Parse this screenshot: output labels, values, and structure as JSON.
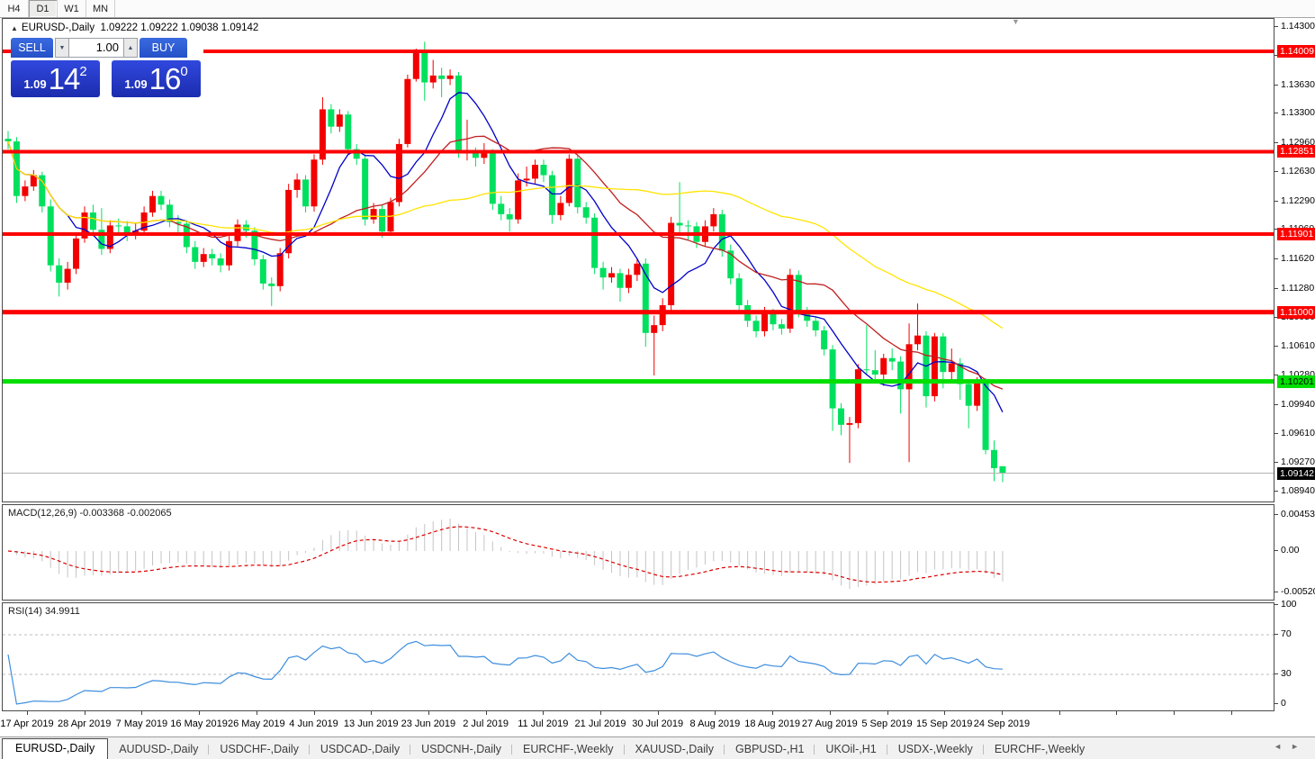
{
  "toolbar": {
    "timeframes": [
      {
        "label": "H4",
        "active": false
      },
      {
        "label": "D1",
        "active": true
      },
      {
        "label": "W1",
        "active": false
      },
      {
        "label": "MN",
        "active": false
      }
    ]
  },
  "chart_header": {
    "collapse_icon": "▲",
    "symbol": "EURUSD-,Daily",
    "ohlc": "1.09222 1.09222 1.09038 1.09142"
  },
  "trade_panel": {
    "sell_label": "SELL",
    "buy_label": "BUY",
    "volume": "1.00",
    "spin_down_icon": "▼",
    "spin_up_icon": "▲",
    "sell_price_small": "1.09",
    "sell_price_big": "14",
    "sell_price_sup": "2",
    "buy_price_small": "1.09",
    "buy_price_big": "16",
    "buy_price_sup": "0"
  },
  "price_axis": {
    "ticks": [
      "1.14300",
      "1.13970",
      "1.13630",
      "1.13300",
      "1.12960",
      "1.12630",
      "1.12290",
      "1.11960",
      "1.11620",
      "1.11280",
      "1.10950",
      "1.10610",
      "1.10280",
      "1.09940",
      "1.09610",
      "1.09270",
      "1.08940"
    ]
  },
  "hlines": [
    {
      "price": 1.14009,
      "label": "1.14009",
      "color": "#fe0000",
      "badge_bg": "#fe0000",
      "badge_fg": "#ffffff",
      "width": 4
    },
    {
      "price": 1.12851,
      "label": "1.12851",
      "color": "#fe0000",
      "badge_bg": "#fe0000",
      "badge_fg": "#ffffff",
      "width": 4
    },
    {
      "price": 1.11901,
      "label": "1.11901",
      "color": "#fe0000",
      "badge_bg": "#fe0000",
      "badge_fg": "#ffffff",
      "width": 4
    },
    {
      "price": 1.11,
      "label": "1.11000",
      "color": "#fe0000",
      "badge_bg": "#fe0000",
      "badge_fg": "#ffffff",
      "width": 5
    },
    {
      "price": 1.10201,
      "label": "1.10201",
      "color": "#00df00",
      "badge_bg": "#00df00",
      "badge_fg": "#000000",
      "width": 5
    }
  ],
  "current_price": {
    "value": 1.09142,
    "label": "1.09142",
    "line_color": "#b2b2b2",
    "badge_bg": "#000000",
    "badge_fg": "#ffffff"
  },
  "chart_data": {
    "type": "candlestick",
    "title": "EURUSD-,Daily",
    "visible_price_range": [
      1.088,
      1.144
    ],
    "colors": {
      "up": "#f20000",
      "down": "#00e05f"
    },
    "moving_averages": [
      {
        "period": 8,
        "color": "#0000c8"
      },
      {
        "period": 20,
        "color": "#c02020"
      },
      {
        "period": 50,
        "color": "#ffe400"
      }
    ],
    "x_labels": [
      "17 Apr 2019",
      "28 Apr 2019",
      "7 May 2019",
      "16 May 2019",
      "26 May 2019",
      "4 Jun 2019",
      "13 Jun 2019",
      "23 Jun 2019",
      "2 Jul 2019",
      "11 Jul 2019",
      "21 Jul 2019",
      "30 Jul 2019",
      "8 Aug 2019",
      "18 Aug 2019",
      "27 Aug 2019",
      "5 Sep 2019",
      "15 Sep 2019",
      "24 Sep 2019"
    ],
    "candles": [
      [
        1.13,
        1.1309,
        1.1288,
        1.1297
      ],
      [
        1.1297,
        1.1302,
        1.1226,
        1.1234
      ],
      [
        1.1234,
        1.1252,
        1.1228,
        1.1245
      ],
      [
        1.1245,
        1.1264,
        1.124,
        1.1258
      ],
      [
        1.1258,
        1.1262,
        1.1215,
        1.1222
      ],
      [
        1.1222,
        1.123,
        1.1147,
        1.1154
      ],
      [
        1.1154,
        1.1162,
        1.1118,
        1.1134
      ],
      [
        1.1134,
        1.1158,
        1.1126,
        1.115
      ],
      [
        1.115,
        1.1192,
        1.1144,
        1.1185
      ],
      [
        1.1185,
        1.1222,
        1.118,
        1.1215
      ],
      [
        1.1215,
        1.1224,
        1.1188,
        1.1195
      ],
      [
        1.1195,
        1.122,
        1.1166,
        1.1173
      ],
      [
        1.1173,
        1.1206,
        1.1168,
        1.12
      ],
      [
        1.12,
        1.1208,
        1.1188,
        1.1199
      ],
      [
        1.1199,
        1.1205,
        1.1182,
        1.1191
      ],
      [
        1.1191,
        1.1202,
        1.1184,
        1.1194
      ],
      [
        1.1194,
        1.1222,
        1.119,
        1.1215
      ],
      [
        1.1215,
        1.124,
        1.121,
        1.1234
      ],
      [
        1.1234,
        1.124,
        1.1218,
        1.1224
      ],
      [
        1.1224,
        1.123,
        1.1198,
        1.1204
      ],
      [
        1.1204,
        1.1212,
        1.1192,
        1.1202
      ],
      [
        1.1202,
        1.1206,
        1.1168,
        1.1175
      ],
      [
        1.1175,
        1.1182,
        1.115,
        1.1158
      ],
      [
        1.1158,
        1.1174,
        1.1152,
        1.1167
      ],
      [
        1.1167,
        1.1173,
        1.1154,
        1.1162
      ],
      [
        1.1162,
        1.1168,
        1.1146,
        1.1154
      ],
      [
        1.1154,
        1.1188,
        1.1148,
        1.1182
      ],
      [
        1.1182,
        1.1207,
        1.1176,
        1.1201
      ],
      [
        1.1201,
        1.1206,
        1.1186,
        1.1194
      ],
      [
        1.1194,
        1.1198,
        1.1154,
        1.1161
      ],
      [
        1.1161,
        1.1166,
        1.1126,
        1.1133
      ],
      [
        1.1133,
        1.114,
        1.1107,
        1.113
      ],
      [
        1.113,
        1.1174,
        1.1124,
        1.1168
      ],
      [
        1.1168,
        1.1248,
        1.1162,
        1.1241
      ],
      [
        1.1241,
        1.126,
        1.1232,
        1.1253
      ],
      [
        1.1253,
        1.1258,
        1.1215,
        1.1222
      ],
      [
        1.1222,
        1.1282,
        1.1216,
        1.1276
      ],
      [
        1.1276,
        1.1348,
        1.127,
        1.1334
      ],
      [
        1.1334,
        1.134,
        1.1306,
        1.1314
      ],
      [
        1.1314,
        1.1334,
        1.1308,
        1.1328
      ],
      [
        1.1328,
        1.1332,
        1.1282,
        1.1288
      ],
      [
        1.1288,
        1.1294,
        1.127,
        1.1277
      ],
      [
        1.1277,
        1.1282,
        1.12,
        1.1207
      ],
      [
        1.1207,
        1.1226,
        1.1202,
        1.1219
      ],
      [
        1.1219,
        1.1224,
        1.1186,
        1.1193
      ],
      [
        1.1193,
        1.1232,
        1.1188,
        1.1227
      ],
      [
        1.1227,
        1.13,
        1.1222,
        1.1294
      ],
      [
        1.1294,
        1.1374,
        1.129,
        1.1369
      ],
      [
        1.1369,
        1.1404,
        1.1366,
        1.1399
      ],
      [
        1.1399,
        1.1412,
        1.1344,
        1.1365
      ],
      [
        1.1365,
        1.1391,
        1.1358,
        1.1373
      ],
      [
        1.1373,
        1.1382,
        1.1348,
        1.1369
      ],
      [
        1.1369,
        1.138,
        1.1362,
        1.1373
      ],
      [
        1.1373,
        1.1377,
        1.1278,
        1.1285
      ],
      [
        1.1285,
        1.1322,
        1.1275,
        1.1285
      ],
      [
        1.1285,
        1.129,
        1.1268,
        1.1278
      ],
      [
        1.1278,
        1.1295,
        1.1271,
        1.1283
      ],
      [
        1.1283,
        1.1288,
        1.1218,
        1.1225
      ],
      [
        1.1225,
        1.1234,
        1.1206,
        1.1213
      ],
      [
        1.1213,
        1.122,
        1.1193,
        1.1207
      ],
      [
        1.1207,
        1.126,
        1.1202,
        1.1252
      ],
      [
        1.1252,
        1.1268,
        1.1245,
        1.1254
      ],
      [
        1.1254,
        1.1276,
        1.1248,
        1.127
      ],
      [
        1.127,
        1.1276,
        1.125,
        1.1258
      ],
      [
        1.1258,
        1.1263,
        1.1202,
        1.1212
      ],
      [
        1.1212,
        1.1234,
        1.1206,
        1.1226
      ],
      [
        1.1226,
        1.1282,
        1.1222,
        1.1277
      ],
      [
        1.1277,
        1.1282,
        1.1214,
        1.1221
      ],
      [
        1.1221,
        1.1227,
        1.1202,
        1.1209
      ],
      [
        1.1209,
        1.1214,
        1.1144,
        1.1151
      ],
      [
        1.1151,
        1.1158,
        1.1126,
        1.114
      ],
      [
        1.114,
        1.1152,
        1.1134,
        1.1145
      ],
      [
        1.1145,
        1.115,
        1.1112,
        1.1128
      ],
      [
        1.1128,
        1.115,
        1.1122,
        1.1143
      ],
      [
        1.1143,
        1.1162,
        1.1136,
        1.1156
      ],
      [
        1.1156,
        1.1162,
        1.106,
        1.1076
      ],
      [
        1.1076,
        1.1096,
        1.1027,
        1.1085
      ],
      [
        1.1085,
        1.1116,
        1.1078,
        1.1108
      ],
      [
        1.1108,
        1.121,
        1.1102,
        1.1203
      ],
      [
        1.1203,
        1.125,
        1.1192,
        1.12
      ],
      [
        1.12,
        1.1206,
        1.1183,
        1.1199
      ],
      [
        1.1199,
        1.1204,
        1.1174,
        1.1181
      ],
      [
        1.1181,
        1.1206,
        1.1176,
        1.1199
      ],
      [
        1.1199,
        1.122,
        1.1193,
        1.1213
      ],
      [
        1.1213,
        1.1218,
        1.1164,
        1.1171
      ],
      [
        1.1171,
        1.1178,
        1.1132,
        1.1139
      ],
      [
        1.1139,
        1.1145,
        1.1101,
        1.1108
      ],
      [
        1.1108,
        1.1114,
        1.1083,
        1.109
      ],
      [
        1.109,
        1.1096,
        1.1071,
        1.1078
      ],
      [
        1.1078,
        1.1106,
        1.1072,
        1.1099
      ],
      [
        1.1099,
        1.1104,
        1.1079,
        1.1086
      ],
      [
        1.1086,
        1.1092,
        1.1074,
        1.1081
      ],
      [
        1.1081,
        1.115,
        1.1076,
        1.1143
      ],
      [
        1.1143,
        1.1148,
        1.1094,
        1.1101
      ],
      [
        1.1101,
        1.1106,
        1.1083,
        1.109
      ],
      [
        1.109,
        1.1095,
        1.1072,
        1.1079
      ],
      [
        1.1079,
        1.1084,
        1.105,
        1.1057
      ],
      [
        1.1057,
        1.1062,
        1.0963,
        1.0989
      ],
      [
        1.0989,
        1.0995,
        1.0958,
        1.097
      ],
      [
        1.097,
        1.0979,
        1.0926,
        1.0972
      ],
      [
        1.0972,
        1.104,
        1.0966,
        1.1034
      ],
      [
        1.1034,
        1.1085,
        1.1028,
        1.1033
      ],
      [
        1.1033,
        1.1056,
        1.1022,
        1.1028
      ],
      [
        1.1028,
        1.1052,
        1.1015,
        1.1047
      ],
      [
        1.1047,
        1.1058,
        1.1033,
        1.1043
      ],
      [
        1.1043,
        1.1049,
        1.0983,
        1.1011
      ],
      [
        1.1011,
        1.1087,
        1.0927,
        1.1063
      ],
      [
        1.1063,
        1.111,
        1.1056,
        1.1073
      ],
      [
        1.1073,
        1.1078,
        1.099,
        1.1003
      ],
      [
        1.1003,
        1.1076,
        1.0997,
        1.1072
      ],
      [
        1.1072,
        1.1076,
        1.1012,
        1.1031
      ],
      [
        1.1031,
        1.1058,
        1.1022,
        1.1041
      ],
      [
        1.1041,
        1.1047,
        1.0999,
        1.1017
      ],
      [
        1.1017,
        1.1022,
        1.0966,
        1.0992
      ],
      [
        1.0992,
        1.1025,
        1.0986,
        1.1021
      ],
      [
        1.1021,
        1.1024,
        1.0936,
        1.0941
      ],
      [
        1.0941,
        1.0952,
        1.0905,
        1.092
      ],
      [
        1.09222,
        1.09222,
        1.09038,
        1.09142
      ]
    ]
  },
  "macd": {
    "name": "MACD(12,26,9)",
    "values": "-0.003368 -0.002065",
    "params": [
      12,
      26,
      9
    ],
    "scale_labels": [
      "0.004536",
      "0.00",
      "-0.005205"
    ],
    "histogram_color": "#c4c4c4",
    "signal_color": "#dc0000"
  },
  "rsi": {
    "name": "RSI(14)",
    "value": "34.9911",
    "period": 14,
    "scale_labels": [
      "100",
      "70",
      "30",
      "0"
    ],
    "levels": [
      70,
      30
    ],
    "level_color": "#bdbdbd",
    "line_color": "#3e8ede"
  },
  "shift_marker_icon": "▼",
  "tab_bar": {
    "tabs": [
      {
        "label": "EURUSD-,Daily",
        "active": true
      },
      {
        "label": "AUDUSD-,Daily",
        "active": false
      },
      {
        "label": "USDCHF-,Daily",
        "active": false
      },
      {
        "label": "USDCAD-,Daily",
        "active": false
      },
      {
        "label": "USDCNH-,Daily",
        "active": false
      },
      {
        "label": "EURCHF-,Weekly",
        "active": false
      },
      {
        "label": "XAUUSD-,Daily",
        "active": false
      },
      {
        "label": "GBPUSD-,H1",
        "active": false
      },
      {
        "label": "UKOil-,H1",
        "active": false
      },
      {
        "label": "USDX-,Weekly",
        "active": false
      },
      {
        "label": "EURCHF-,Weekly",
        "active": false
      }
    ],
    "nav_prev": "◄",
    "nav_next": "►"
  }
}
